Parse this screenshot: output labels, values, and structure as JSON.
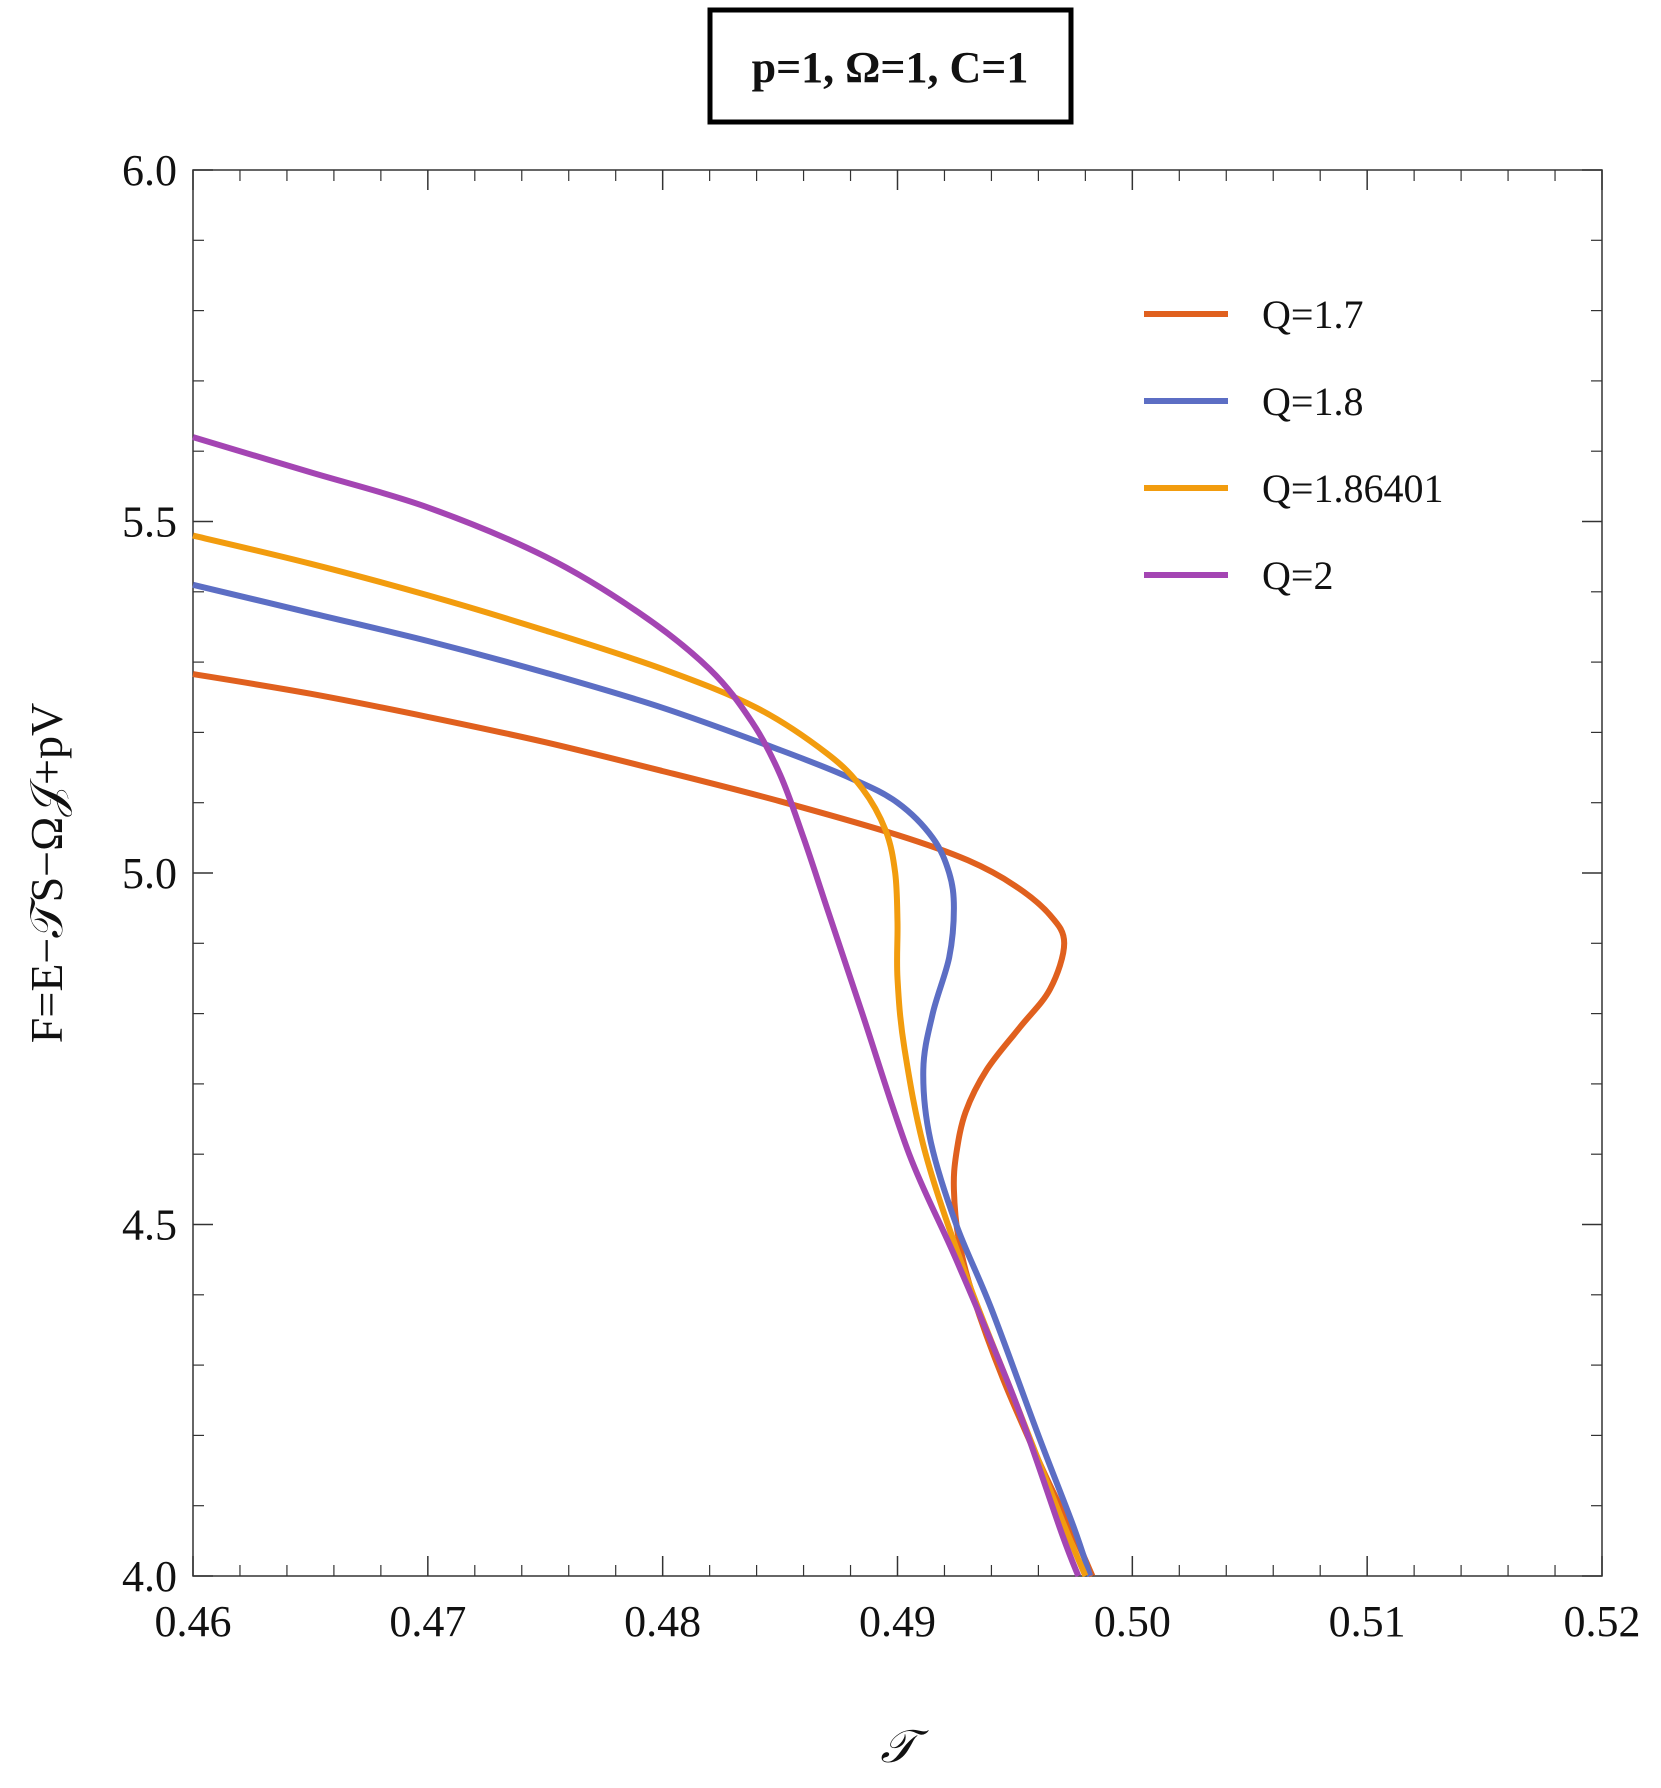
{
  "chart_data": {
    "type": "line",
    "title": "p=1, Ω=1, C=1",
    "xlabel": "𝒯",
    "ylabel": "F=E−𝒯S−Ω𝒥+pV",
    "xlim": [
      0.46,
      0.52
    ],
    "ylim": [
      4.0,
      6.0
    ],
    "x_ticks": [
      "0.46",
      "0.47",
      "0.48",
      "0.49",
      "0.50",
      "0.51",
      "0.52"
    ],
    "y_ticks": [
      "4.0",
      "4.5",
      "5.0",
      "5.5",
      "6.0"
    ],
    "grid": false,
    "legend_position": "top-right",
    "series": [
      {
        "name": "Q=1.7",
        "color": "#e0601e",
        "points": [
          [
            0.46,
            5.283
          ],
          [
            0.465,
            5.255
          ],
          [
            0.47,
            5.222
          ],
          [
            0.475,
            5.186
          ],
          [
            0.48,
            5.145
          ],
          [
            0.485,
            5.102
          ],
          [
            0.49,
            5.054
          ],
          [
            0.493,
            5.018
          ],
          [
            0.495,
            4.982
          ],
          [
            0.4965,
            4.94
          ],
          [
            0.4971,
            4.9
          ],
          [
            0.4965,
            4.835
          ],
          [
            0.4952,
            4.78
          ],
          [
            0.4938,
            4.72
          ],
          [
            0.4929,
            4.66
          ],
          [
            0.4925,
            4.6
          ],
          [
            0.4924,
            4.55
          ],
          [
            0.4926,
            4.48
          ],
          [
            0.4932,
            4.4
          ],
          [
            0.4945,
            4.28
          ],
          [
            0.4962,
            4.15
          ],
          [
            0.4975,
            4.06
          ],
          [
            0.4983,
            4.0
          ]
        ]
      },
      {
        "name": "Q=1.8",
        "color": "#5c6ec4",
        "points": [
          [
            0.46,
            5.41
          ],
          [
            0.465,
            5.37
          ],
          [
            0.47,
            5.33
          ],
          [
            0.475,
            5.285
          ],
          [
            0.48,
            5.235
          ],
          [
            0.485,
            5.175
          ],
          [
            0.488,
            5.135
          ],
          [
            0.49,
            5.1
          ],
          [
            0.4915,
            5.05
          ],
          [
            0.4922,
            5.0
          ],
          [
            0.4924,
            4.95
          ],
          [
            0.4922,
            4.88
          ],
          [
            0.4915,
            4.8
          ],
          [
            0.4911,
            4.72
          ],
          [
            0.4914,
            4.62
          ],
          [
            0.4925,
            4.5
          ],
          [
            0.494,
            4.38
          ],
          [
            0.496,
            4.2
          ],
          [
            0.4975,
            4.07
          ],
          [
            0.4982,
            4.0
          ]
        ]
      },
      {
        "name": "Q=1.86401",
        "color": "#f29c0e",
        "points": [
          [
            0.46,
            5.48
          ],
          [
            0.465,
            5.44
          ],
          [
            0.47,
            5.395
          ],
          [
            0.475,
            5.345
          ],
          [
            0.48,
            5.29
          ],
          [
            0.484,
            5.235
          ],
          [
            0.487,
            5.17
          ],
          [
            0.4885,
            5.12
          ],
          [
            0.4895,
            5.06
          ],
          [
            0.4899,
            5.0
          ],
          [
            0.49,
            4.93
          ],
          [
            0.49,
            4.85
          ],
          [
            0.4903,
            4.75
          ],
          [
            0.4912,
            4.6
          ],
          [
            0.493,
            4.42
          ],
          [
            0.495,
            4.25
          ],
          [
            0.497,
            4.08
          ],
          [
            0.498,
            4.0
          ]
        ]
      },
      {
        "name": "Q=2",
        "color": "#a445b3",
        "points": [
          [
            0.46,
            5.62
          ],
          [
            0.465,
            5.57
          ],
          [
            0.47,
            5.52
          ],
          [
            0.475,
            5.45
          ],
          [
            0.479,
            5.37
          ],
          [
            0.482,
            5.29
          ],
          [
            0.4838,
            5.215
          ],
          [
            0.485,
            5.14
          ],
          [
            0.486,
            5.05
          ],
          [
            0.487,
            4.95
          ],
          [
            0.4885,
            4.8
          ],
          [
            0.4905,
            4.6
          ],
          [
            0.4925,
            4.45
          ],
          [
            0.495,
            4.25
          ],
          [
            0.497,
            4.06
          ],
          [
            0.4977,
            4.0
          ]
        ]
      }
    ]
  }
}
